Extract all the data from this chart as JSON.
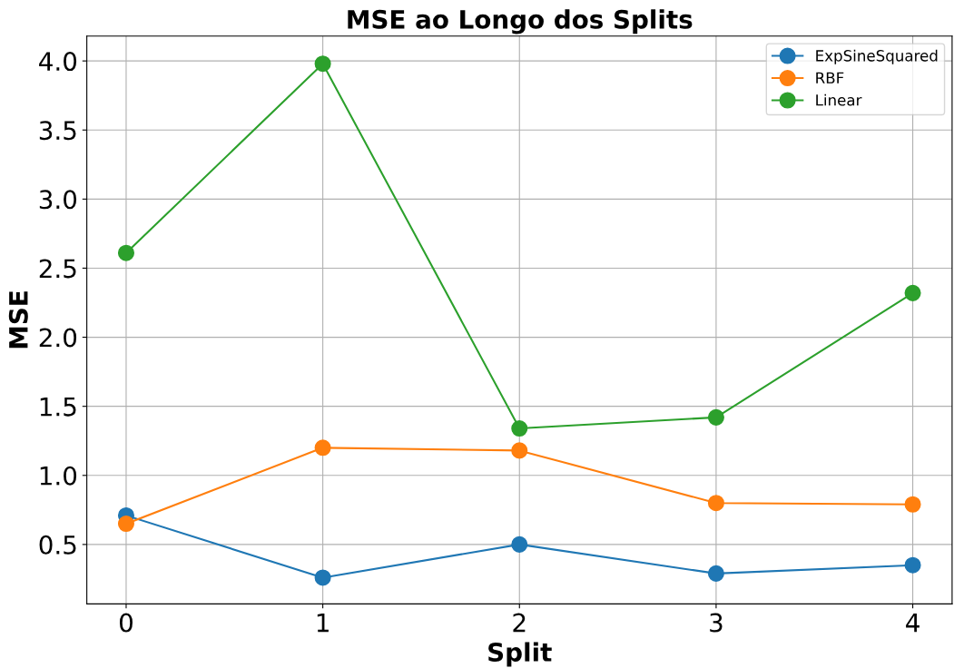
{
  "chart_data": {
    "type": "line",
    "title": "MSE ao Longo dos Splits",
    "xlabel": "Split",
    "ylabel": "MSE",
    "x": [
      0,
      1,
      2,
      3,
      4
    ],
    "series": [
      {
        "name": "ExpSineSquared",
        "color": "#1f77b4",
        "values": [
          0.71,
          0.26,
          0.5,
          0.29,
          0.35
        ]
      },
      {
        "name": "RBF",
        "color": "#ff7f0e",
        "values": [
          0.65,
          1.2,
          1.18,
          0.8,
          0.79
        ]
      },
      {
        "name": "Linear",
        "color": "#2ca02c",
        "values": [
          2.61,
          3.98,
          1.34,
          1.42,
          2.32
        ]
      }
    ],
    "xlim": [
      -0.2,
      4.2
    ],
    "xticks": [
      0,
      1,
      2,
      3,
      4
    ],
    "ylim": [
      0.07,
      4.18
    ],
    "yticks": [
      {
        "value": 0.5,
        "label": "0.5"
      },
      {
        "value": 1.0,
        "label": "1.0"
      },
      {
        "value": 1.5,
        "label": "1.5"
      },
      {
        "value": 2.0,
        "label": "2.0"
      },
      {
        "value": 2.5,
        "label": "2.5"
      },
      {
        "value": 3.0,
        "label": "3.0"
      },
      {
        "value": 3.5,
        "label": "3.5"
      },
      {
        "value": 4.0,
        "label": "4.0"
      }
    ],
    "grid": true,
    "legend": "top right",
    "marker": "circle",
    "line_style": "solid"
  }
}
